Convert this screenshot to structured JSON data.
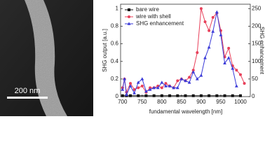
{
  "image": {
    "scale_bar": "200 nm"
  },
  "chart_data": {
    "type": "line",
    "xlabel": "fundamental wavelength [nm]",
    "ylabel": "SHG output [a.u.]",
    "y2label": "SHG enhancement",
    "xlim": [
      695,
      1025
    ],
    "xticks": [
      700,
      750,
      800,
      850,
      900,
      950,
      1000
    ],
    "ylim": [
      0,
      1.05
    ],
    "yticks": [
      0,
      0.2,
      0.4,
      0.6,
      0.8,
      1
    ],
    "y2lim": [
      0,
      262.5
    ],
    "y2ticks": [
      0,
      50,
      100,
      150,
      200,
      250
    ],
    "grid": false,
    "legend": "upper left",
    "series": [
      {
        "name": "bare wire",
        "color": "#111111",
        "marker": "square",
        "x": [
          700,
          710,
          720,
          740,
          760,
          780,
          800,
          820,
          840,
          860,
          880,
          900,
          920,
          940,
          960,
          980,
          1000
        ],
        "values": [
          0.01,
          0.01,
          0.01,
          0.01,
          0.01,
          0.01,
          0.01,
          0.01,
          0.01,
          0.01,
          0.01,
          0.01,
          0.01,
          0.01,
          0.01,
          0.01,
          0.01
        ]
      },
      {
        "name": "wire with shell",
        "color": "#e8405a",
        "marker": "circle",
        "x": [
          700,
          705,
          710,
          720,
          730,
          740,
          750,
          760,
          770,
          780,
          790,
          800,
          810,
          820,
          830,
          840,
          850,
          860,
          870,
          880,
          890,
          900,
          910,
          920,
          930,
          940,
          950,
          960,
          970,
          980,
          990,
          1000,
          1010
        ],
        "values": [
          0.1,
          0.2,
          0.05,
          0.15,
          0.08,
          0.1,
          0.12,
          0.05,
          0.1,
          0.1,
          0.12,
          0.1,
          0.15,
          0.12,
          0.1,
          0.18,
          0.2,
          0.18,
          0.22,
          0.3,
          0.5,
          1.0,
          0.85,
          0.75,
          0.9,
          0.95,
          0.75,
          0.45,
          0.55,
          0.35,
          0.3,
          0.25,
          0.15
        ]
      },
      {
        "name": "SHG enhancement",
        "color": "#3a3ad8",
        "marker": "triangle",
        "axis": "y2",
        "x": [
          700,
          705,
          710,
          720,
          730,
          740,
          750,
          760,
          770,
          780,
          790,
          800,
          810,
          820,
          830,
          840,
          850,
          860,
          870,
          880,
          890,
          900,
          910,
          920,
          930,
          940,
          950,
          960,
          970,
          980,
          990
        ],
        "values": [
          20,
          50,
          5,
          30,
          10,
          40,
          50,
          15,
          20,
          25,
          25,
          40,
          30,
          30,
          25,
          25,
          50,
          45,
          40,
          70,
          50,
          60,
          110,
          140,
          185,
          240,
          175,
          95,
          110,
          80,
          30
        ]
      }
    ]
  }
}
